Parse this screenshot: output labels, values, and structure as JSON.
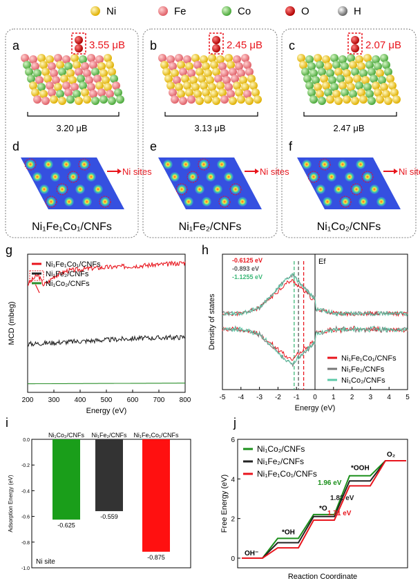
{
  "legend_top": [
    {
      "label": "Ni",
      "color": "#f2c200"
    },
    {
      "label": "Fe",
      "color": "#ee7a80"
    },
    {
      "label": "Co",
      "color": "#6cc253"
    },
    {
      "label": "O",
      "color": "#d81818"
    },
    {
      "label": "H",
      "color": "#bdbdbd"
    }
  ],
  "panels": [
    {
      "letter_top": "a",
      "moment_O": "3.55 μB",
      "moment_bulk": "3.20 μB",
      "letter_bottom": "d",
      "sites_label": "Ni sites",
      "name": "Ni₁Fe₁Co₁/CNFs",
      "mix": [
        "#f2c200",
        "#ee7a80",
        "#6cc253"
      ]
    },
    {
      "letter_top": "b",
      "moment_O": "2.45 μB",
      "moment_bulk": "3.13 μB",
      "letter_bottom": "e",
      "sites_label": "Ni sites",
      "name": "Ni₁Fe₂/CNFs",
      "mix": [
        "#f2c200",
        "#ee7a80"
      ]
    },
    {
      "letter_top": "c",
      "moment_O": "2.07 μB",
      "moment_bulk": "2.47 μB",
      "letter_bottom": "f",
      "sites_label": "Ni sites",
      "name": "Ni₁Co₂/CNFs",
      "mix": [
        "#f2c200",
        "#6cc253"
      ]
    }
  ],
  "chart_data": [
    {
      "id": "g",
      "type": "line",
      "ylabel": "MCD (mbeg)",
      "xlabel": "Energy (eV)",
      "xlim": [
        200,
        800
      ],
      "xticks": [
        200,
        300,
        400,
        500,
        600,
        700,
        800
      ],
      "series": [
        {
          "name": "Ni₁Fe₁Co₁/CNFs",
          "color": "#e8141c",
          "x": [
            200,
            220,
            240,
            260,
            280,
            300,
            350,
            400,
            450,
            500,
            550,
            600,
            650,
            700,
            750,
            800
          ],
          "y": [
            0.78,
            0.82,
            0.85,
            0.78,
            0.8,
            0.84,
            0.88,
            0.89,
            0.9,
            0.905,
            0.91,
            0.915,
            0.92,
            0.925,
            0.93,
            0.94
          ]
        },
        {
          "name": "Ni₁Fe₂/CNFs",
          "color": "#222222",
          "x": [
            200,
            300,
            400,
            500,
            600,
            700,
            800
          ],
          "y": [
            0.35,
            0.36,
            0.37,
            0.38,
            0.39,
            0.395,
            0.4
          ]
        },
        {
          "name": "Ni₁Co₂/CNFs",
          "color": "#2a8f2a",
          "x": [
            200,
            800
          ],
          "y": [
            0.06,
            0.065
          ]
        }
      ]
    },
    {
      "id": "h",
      "type": "line",
      "ylabel": "Density of states",
      "xlabel": "Energy (eV)",
      "xlim": [
        -5,
        5
      ],
      "xticks": [
        -5,
        -4,
        -3,
        -2,
        -1,
        0,
        1,
        2,
        3,
        4,
        5
      ],
      "fermi_label": "Ef",
      "annotations": [
        {
          "text": "-0.6125 eV",
          "color": "#e8141c",
          "x": -0.6125
        },
        {
          "text": "-0.893 eV",
          "color": "#555555",
          "x": -0.893
        },
        {
          "text": "-1.1255 eV",
          "color": "#3cb878",
          "x": -1.1255
        }
      ],
      "series": [
        {
          "name": "Ni₁Fe₁Co₁/CNFs",
          "color": "#e8141c"
        },
        {
          "name": "Ni₁Fe₂/CNFs",
          "color": "#777777"
        },
        {
          "name": "Ni₁Co₂/CNFs",
          "color": "#5cc9a7"
        }
      ]
    },
    {
      "id": "i",
      "type": "bar",
      "ylabel": "Adsorption Energy (eV)",
      "ylim": [
        -1.0,
        0.0
      ],
      "yticks": [
        0.0,
        -0.2,
        -0.4,
        -0.6,
        -0.8,
        -1.0
      ],
      "categories": [
        "Ni₁Co₂/CNFs",
        "Ni₁Fe₂/CNFs",
        "Ni₁Fe₁Co₁/CNFs"
      ],
      "values": [
        -0.625,
        -0.559,
        -0.875
      ],
      "value_labels": [
        "-0.625",
        "-0.559",
        "-0.875"
      ],
      "colors": [
        "#1a9e1a",
        "#333333",
        "#ff1010"
      ],
      "note": "Ni site"
    },
    {
      "id": "j",
      "type": "line",
      "ylabel": "Free Energy (eV)",
      "xlabel": "Reaction Coordinate",
      "ylim": [
        0,
        6
      ],
      "yticks": [
        0,
        2,
        4,
        6
      ],
      "step_labels": [
        "OH⁻",
        "*OH",
        "*O",
        "*OOH",
        "O₂"
      ],
      "series": [
        {
          "name": "Ni₁Co₂/CNFs",
          "color": "#1a8f1a",
          "values": [
            0,
            1.0,
            2.2,
            4.16,
            4.92
          ]
        },
        {
          "name": "Ni₁Fe₂/CNFs",
          "color": "#222222",
          "values": [
            0,
            0.78,
            2.1,
            3.9,
            4.92
          ]
        },
        {
          "name": "Ni₁Fe₁Co₁/CNFs",
          "color": "#e8141c",
          "values": [
            0,
            0.52,
            1.92,
            3.65,
            4.92
          ]
        }
      ],
      "annotations": [
        {
          "text": "1.96 eV",
          "color": "#1a8f1a"
        },
        {
          "text": "1.82 eV",
          "color": "#222222"
        },
        {
          "text": "1.71 eV",
          "color": "#e8141c"
        }
      ]
    }
  ]
}
